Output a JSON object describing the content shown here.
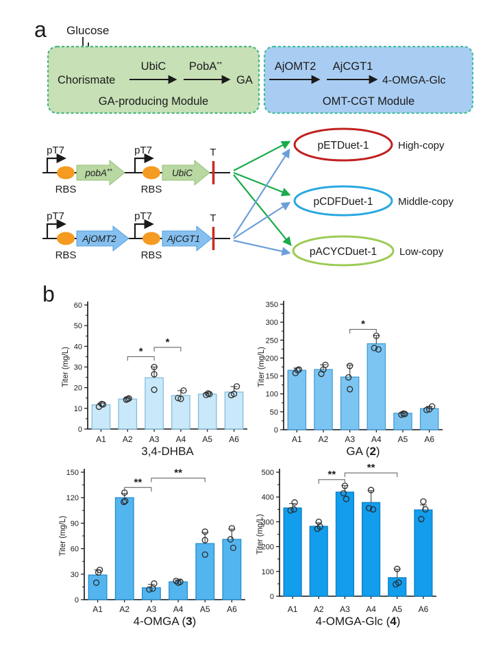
{
  "figure": {
    "panel_a_label": "a",
    "panel_b_label": "b"
  },
  "pathway": {
    "glucose": "Glucose",
    "ga_module": {
      "substrate": "Chorismate",
      "enzyme1": "UbiC",
      "enzyme2": "PobA",
      "enzyme2_sup": "**",
      "product": "GA",
      "caption": "GA-producing Module",
      "box_fill": "#c7e0b6",
      "box_border": "#48b581"
    },
    "omt_module": {
      "enzyme1": "AjOMT2",
      "enzyme2": "AjCGT1",
      "product": "4-OMGA-Glc",
      "caption": "OMT-CGT Module",
      "box_fill": "#a9cdf2",
      "box_border": "#3fbfa0"
    }
  },
  "constructs": {
    "promoter_label": "pT7",
    "rbs_label": "RBS",
    "terminator_label": "T",
    "rbs_color": "#f59b22",
    "terminator_color": "#cc2a1f",
    "arrow_green": "#1aab4a",
    "arrow_blue": "#6b9fd8",
    "row1": {
      "gene1": "pobA",
      "gene1_sup": "**",
      "gene2": "UbiC",
      "fill": "#b9d8a2",
      "stroke": "#93c178"
    },
    "row2": {
      "gene1": "AjOMT2",
      "gene2": "AjCGT1",
      "fill": "#85c0f0",
      "stroke": "#55a0de"
    }
  },
  "plasmids": [
    {
      "name": "pETDuet-1",
      "copy": "High-copy",
      "color": "#c01f1f"
    },
    {
      "name": "pCDFDuet-1",
      "copy": "Middle-copy",
      "color": "#29a8e0"
    },
    {
      "name": "pACYCDuet-1",
      "copy": "Low-copy",
      "color": "#9ccb55"
    }
  ],
  "chart_data": [
    {
      "type": "bar",
      "title_prefix": "3,4-DHBA",
      "title_bold": "",
      "title_suffix": "",
      "ylabel": "Titer (mg/L)",
      "categories": [
        "A1",
        "A2",
        "A3",
        "A4",
        "A5",
        "A6"
      ],
      "values": [
        11.7,
        14.5,
        24.8,
        16.2,
        16.9,
        17.9
      ],
      "errors": [
        0.8,
        0.5,
        5.2,
        2.4,
        0.6,
        2.6
      ],
      "points": [
        [
          [
            -3,
            10.8
          ],
          [
            1,
            12.1
          ],
          [
            3,
            11.9
          ]
        ],
        [
          [
            -2,
            14.2
          ],
          [
            0,
            14.5
          ],
          [
            2,
            14.8
          ]
        ],
        [
          [
            0,
            30
          ],
          [
            0,
            26.5
          ],
          [
            0,
            19
          ]
        ],
        [
          [
            -4,
            15
          ],
          [
            0,
            14.6
          ],
          [
            4,
            18.6
          ]
        ],
        [
          [
            -2,
            16.5
          ],
          [
            1,
            17.2
          ],
          [
            3,
            16.9
          ]
        ],
        [
          [
            -4,
            16.4
          ],
          [
            0,
            17
          ],
          [
            4,
            20.6
          ]
        ]
      ],
      "ylim": [
        0,
        60
      ],
      "yticks": [
        0,
        10,
        20,
        30,
        40,
        50,
        60
      ],
      "grid": false,
      "bar_fill": "#c9e8fa",
      "bar_stroke": "#7db9da",
      "significance": [
        {
          "i1": 1,
          "i2": 2,
          "label": "*",
          "at": 35
        },
        {
          "i1": 2,
          "i2": 3,
          "label": "*",
          "at": 39.5
        }
      ]
    },
    {
      "type": "bar",
      "title_prefix": "GA (",
      "title_bold": "2",
      "title_suffix": ")",
      "ylabel": "Titer (mg/L)",
      "categories": [
        "A1",
        "A2",
        "A3",
        "A4",
        "A5",
        "A6"
      ],
      "values": [
        166,
        168,
        147,
        240,
        46,
        59
      ],
      "errors": [
        6,
        13,
        33,
        23,
        2,
        6
      ],
      "points": [
        [
          [
            -2,
            158
          ],
          [
            1,
            166
          ],
          [
            3,
            168
          ]
        ],
        [
          [
            -3,
            156
          ],
          [
            0,
            168
          ],
          [
            3,
            181
          ]
        ],
        [
          [
            0,
            178
          ],
          [
            -2,
            146
          ],
          [
            0,
            113
          ]
        ],
        [
          [
            0,
            262
          ],
          [
            -3,
            228
          ],
          [
            3,
            224
          ]
        ],
        [
          [
            -2,
            42
          ],
          [
            1,
            45
          ],
          [
            3,
            44
          ]
        ],
        [
          [
            -4,
            55
          ],
          [
            0,
            57
          ],
          [
            4,
            65
          ]
        ]
      ],
      "ylim": [
        0,
        350
      ],
      "yticks": [
        0,
        50,
        100,
        150,
        200,
        250,
        300,
        350
      ],
      "grid": false,
      "bar_fill": "#7cc5f2",
      "bar_stroke": "#3d99d1",
      "significance": [
        {
          "i1": 2,
          "i2": 3,
          "label": "*",
          "at": 280
        }
      ]
    },
    {
      "type": "bar",
      "title_prefix": "4-OMGA (",
      "title_bold": "3",
      "title_suffix": ")",
      "ylabel": "Titer (mg/L)",
      "categories": [
        "A1",
        "A2",
        "A3",
        "A4",
        "A5",
        "A6"
      ],
      "values": [
        29,
        120,
        14,
        21,
        66,
        71
      ],
      "errors": [
        6,
        5,
        4,
        2,
        13,
        12
      ],
      "points": [
        [
          [
            -2,
            20
          ],
          [
            1,
            32
          ],
          [
            3,
            35
          ]
        ],
        [
          [
            -1,
            115
          ],
          [
            1,
            116
          ],
          [
            0,
            126
          ]
        ],
        [
          [
            -3,
            12
          ],
          [
            2,
            13
          ],
          [
            4,
            19
          ]
        ],
        [
          [
            -3,
            22
          ],
          [
            0,
            20
          ],
          [
            3,
            21
          ]
        ],
        [
          [
            0,
            80
          ],
          [
            0,
            70
          ],
          [
            0,
            53
          ]
        ],
        [
          [
            0,
            84
          ],
          [
            -2,
            71
          ],
          [
            2,
            61
          ]
        ]
      ],
      "ylim": [
        0,
        150
      ],
      "yticks": [
        0,
        30,
        60,
        90,
        120,
        150
      ],
      "grid": false,
      "bar_fill": "#53b5ef",
      "bar_stroke": "#2188c9",
      "significance": [
        {
          "i1": 1,
          "i2": 2,
          "label": "**",
          "at": 132
        },
        {
          "i1": 2,
          "i2": 4,
          "label": "**",
          "at": 143
        }
      ]
    },
    {
      "type": "bar",
      "title_prefix": "4-OMGA-Glc (",
      "title_bold": "4",
      "title_suffix": ")",
      "ylabel": "Titer (mg/L)",
      "categories": [
        "A1",
        "A2",
        "A3",
        "A4",
        "A5",
        "A6"
      ],
      "values": [
        356,
        282,
        420,
        378,
        75,
        348
      ],
      "errors": [
        18,
        14,
        26,
        48,
        34,
        20
      ],
      "points": [
        [
          [
            -3,
            346
          ],
          [
            2,
            350
          ],
          [
            3,
            378
          ]
        ],
        [
          [
            -2,
            272
          ],
          [
            2,
            280
          ],
          [
            0,
            300
          ]
        ],
        [
          [
            0,
            445
          ],
          [
            -2,
            415
          ],
          [
            2,
            392
          ]
        ],
        [
          [
            0,
            428
          ],
          [
            -3,
            355
          ],
          [
            3,
            350
          ]
        ],
        [
          [
            0,
            110
          ],
          [
            -2,
            48
          ],
          [
            2,
            55
          ]
        ],
        [
          [
            0,
            382
          ],
          [
            -3,
            311
          ],
          [
            3,
            350
          ]
        ]
      ],
      "ylim": [
        0,
        500
      ],
      "yticks": [
        0,
        100,
        200,
        300,
        400,
        500
      ],
      "grid": false,
      "bar_fill": "#129ded",
      "bar_stroke": "#0c7bc0",
      "significance": [
        {
          "i1": 1,
          "i2": 2,
          "label": "**",
          "at": 470
        },
        {
          "i1": 2,
          "i2": 4,
          "label": "**",
          "at": 497
        }
      ]
    }
  ]
}
